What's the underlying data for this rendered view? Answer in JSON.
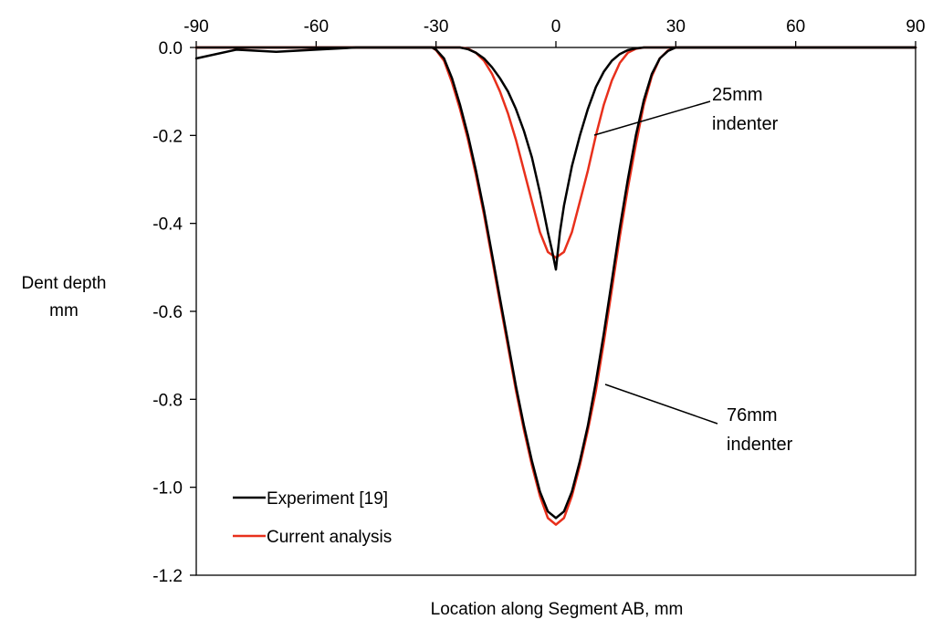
{
  "chart_data": {
    "type": "line",
    "title": "",
    "xlabel": "Location along Segment AB, mm",
    "ylabel": [
      "Dent depth",
      "mm"
    ],
    "xlim": [
      -90,
      90
    ],
    "ylim": [
      -1.2,
      0.0
    ],
    "x_ticks": [
      -90,
      -60,
      -30,
      0,
      30,
      60,
      90
    ],
    "y_ticks": [
      0.0,
      -0.2,
      -0.4,
      -0.6,
      -0.8,
      -1.0,
      -1.2
    ],
    "x_tick_labels": [
      "-90",
      "-60",
      "-30",
      "0",
      "30",
      "60",
      "90"
    ],
    "y_tick_labels": [
      "0.0",
      "-0.2",
      "-0.4",
      "-0.6",
      "-0.8",
      "-1.0",
      "-1.2"
    ],
    "x_axis_position": "top",
    "grid": false,
    "legend_position": "bottom-left",
    "legend": [
      {
        "label": "Experiment [19]",
        "color": "#000000"
      },
      {
        "label": "Current analysis",
        "color": "#e8301c"
      }
    ],
    "series": [
      {
        "name": "Experiment [19]",
        "group": "76mm indenter",
        "color": "#000000",
        "x": [
          -90,
          -80,
          -70,
          -60,
          -50,
          -40,
          -31,
          -30,
          -28,
          -26,
          -24,
          -22,
          -20,
          -18,
          -16,
          -14,
          -12,
          -10,
          -8,
          -6,
          -4,
          -2,
          0,
          2,
          4,
          6,
          8,
          10,
          12,
          14,
          16,
          18,
          20,
          22,
          24,
          26,
          28,
          30,
          32,
          40,
          50,
          60,
          70,
          80,
          90
        ],
        "y": [
          -0.025,
          -0.005,
          -0.01,
          -0.005,
          0.0,
          0.0,
          0.0,
          -0.005,
          -0.025,
          -0.07,
          -0.13,
          -0.2,
          -0.28,
          -0.37,
          -0.47,
          -0.57,
          -0.67,
          -0.77,
          -0.86,
          -0.94,
          -1.01,
          -1.055,
          -1.07,
          -1.055,
          -1.01,
          -0.94,
          -0.86,
          -0.76,
          -0.65,
          -0.53,
          -0.41,
          -0.3,
          -0.2,
          -0.12,
          -0.06,
          -0.025,
          -0.008,
          0.0,
          0.0,
          0.0,
          0.0,
          0.0,
          0.0,
          0.0,
          0.0
        ]
      },
      {
        "name": "Current analysis",
        "group": "76mm indenter",
        "color": "#e8301c",
        "x": [
          -90,
          -40,
          -31,
          -30,
          -28,
          -26,
          -24,
          -22,
          -20,
          -18,
          -16,
          -14,
          -12,
          -10,
          -8,
          -6,
          -4,
          -2,
          0,
          2,
          4,
          6,
          8,
          10,
          12,
          14,
          16,
          18,
          20,
          22,
          24,
          26,
          28,
          30,
          32,
          40,
          90
        ],
        "y": [
          0.0,
          0.0,
          0.0,
          -0.006,
          -0.03,
          -0.08,
          -0.14,
          -0.21,
          -0.29,
          -0.38,
          -0.48,
          -0.58,
          -0.68,
          -0.78,
          -0.87,
          -0.95,
          -1.02,
          -1.07,
          -1.085,
          -1.07,
          -1.02,
          -0.95,
          -0.87,
          -0.78,
          -0.67,
          -0.55,
          -0.43,
          -0.32,
          -0.22,
          -0.13,
          -0.065,
          -0.025,
          -0.007,
          0.0,
          0.0,
          0.0,
          0.0
        ]
      },
      {
        "name": "Experiment [19]",
        "group": "25mm indenter",
        "color": "#000000",
        "x": [
          -90,
          -24,
          -22,
          -20,
          -18,
          -16,
          -14,
          -12,
          -10,
          -8,
          -6,
          -4,
          -2,
          -1,
          0,
          1,
          2,
          4,
          6,
          8,
          10,
          12,
          14,
          16,
          18,
          20,
          22,
          24,
          90
        ],
        "y": [
          0.0,
          0.0,
          -0.004,
          -0.012,
          -0.025,
          -0.045,
          -0.07,
          -0.1,
          -0.14,
          -0.19,
          -0.25,
          -0.33,
          -0.42,
          -0.46,
          -0.505,
          -0.42,
          -0.36,
          -0.27,
          -0.2,
          -0.14,
          -0.09,
          -0.055,
          -0.03,
          -0.015,
          -0.006,
          -0.002,
          0.0,
          0.0,
          0.0
        ]
      },
      {
        "name": "Current analysis",
        "group": "25mm indenter",
        "color": "#e8301c",
        "x": [
          -90,
          -24,
          -22,
          -20,
          -18,
          -16,
          -14,
          -12,
          -10,
          -8,
          -6,
          -4,
          -2,
          0,
          2,
          4,
          6,
          8,
          10,
          12,
          14,
          16,
          18,
          20,
          22,
          24,
          90
        ],
        "y": [
          0.0,
          0.0,
          -0.003,
          -0.012,
          -0.03,
          -0.06,
          -0.1,
          -0.15,
          -0.21,
          -0.28,
          -0.35,
          -0.42,
          -0.465,
          -0.478,
          -0.465,
          -0.42,
          -0.35,
          -0.28,
          -0.2,
          -0.13,
          -0.075,
          -0.035,
          -0.012,
          -0.003,
          0.0,
          0.0,
          0.0
        ]
      }
    ],
    "annotations": [
      {
        "text": [
          "25mm",
          "indenter"
        ],
        "points_to": {
          "x": 3,
          "y": -0.2
        }
      },
      {
        "text": [
          "76mm",
          "indenter"
        ],
        "points_to": {
          "x": 4,
          "y": -0.78
        }
      }
    ]
  }
}
